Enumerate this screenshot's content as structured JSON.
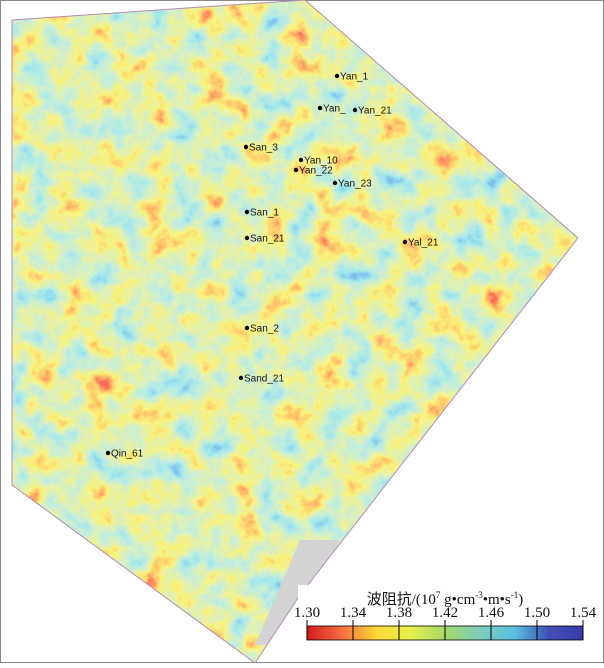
{
  "wells": [
    "Yan_1",
    "Yan_",
    "Yan_21",
    "San_3",
    "Yan_10",
    "Yan_22",
    "Yan_23",
    "San_1",
    "San_21",
    "Yal_21",
    "San_2",
    "Sand_21",
    "Qin_61"
  ],
  "colorbar": {
    "title": {
      "parts": [
        "波阻抗/(10",
        "7",
        " g•cm",
        "-3",
        "•m•s",
        "-1",
        ")"
      ],
      "superscript": [
        false,
        true,
        false,
        true,
        false,
        true,
        false
      ]
    },
    "lim": [
      1.3,
      1.54
    ],
    "ticks": [
      {
        "value": 1.3,
        "label": "1.30"
      },
      1.34,
      1.38,
      1.42,
      1.46,
      {
        "value": 1.5,
        "label": "1.50"
      },
      1.54
    ],
    "colors": [
      "#d7191c",
      "#f46d43",
      "#fdd835",
      "#e6f04a",
      "#a6d96a",
      "#7fcdbb",
      "#5bc0de",
      "#3f51b5",
      "#3a3aa8"
    ]
  }
}
